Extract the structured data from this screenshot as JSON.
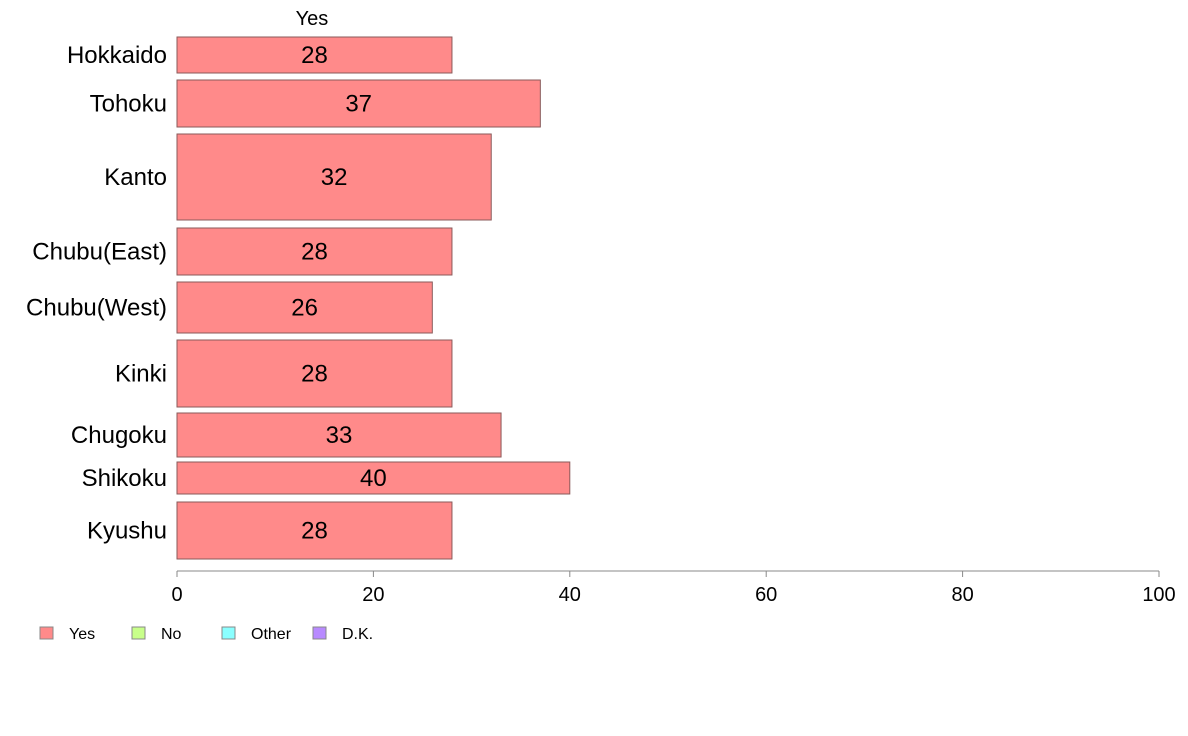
{
  "chart_data": {
    "type": "bar",
    "orientation": "horizontal",
    "bar_header": "Yes",
    "categories": [
      "Hokkaido",
      "Tohoku",
      "Kanto",
      "Chubu(East)",
      "Chubu(West)",
      "Kinki",
      "Chugoku",
      "Shikoku",
      "Kyushu"
    ],
    "values": [
      28,
      37,
      32,
      28,
      26,
      28,
      33,
      40,
      28
    ],
    "xlim": [
      0,
      100
    ],
    "xticks": [
      0,
      20,
      40,
      60,
      80,
      100
    ],
    "grid": false,
    "legend": {
      "placement": "bottom-left",
      "entries": [
        {
          "label": "Yes",
          "color": "#ff8a8a"
        },
        {
          "label": "No",
          "color": "#c8ff8a"
        },
        {
          "label": "Other",
          "color": "#8affff"
        },
        {
          "label": "D.K.",
          "color": "#b88aff"
        }
      ]
    },
    "bar_color": "#ff8a8a",
    "bar_stroke": "#8a5a5a",
    "axis_color": "#888888"
  }
}
